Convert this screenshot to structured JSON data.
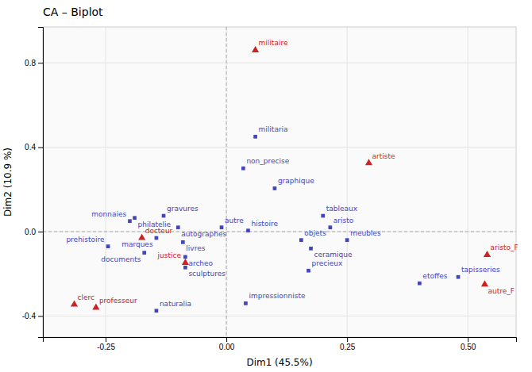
{
  "chart_data": {
    "type": "scatter",
    "title": "CA – Biplot",
    "xlabel": "Dim1 (45.5%)",
    "ylabel": "Dim2 (10.9 %)",
    "xlim": [
      -0.38,
      0.6
    ],
    "ylim": [
      -0.5,
      0.97
    ],
    "xticks": [
      {
        "value": -0.25,
        "label": "-0.25"
      },
      {
        "value": 0.0,
        "label": "0.00"
      },
      {
        "value": 0.25,
        "label": "0.25"
      },
      {
        "value": 0.5,
        "label": "0.50"
      }
    ],
    "yticks": [
      {
        "value": -0.4,
        "label": "-0.4"
      },
      {
        "value": 0.0,
        "label": "0.0"
      },
      {
        "value": 0.4,
        "label": "0.4"
      },
      {
        "value": 0.8,
        "label": "0.8"
      }
    ],
    "grid": true,
    "series": [
      {
        "color": "#4444bb",
        "marker": "square",
        "labels": [
          "militaria",
          "non_precise",
          "graphique",
          "tableaux",
          "histoire",
          "autre",
          "autographes",
          "gravures",
          "philatelie",
          "monnaies",
          "marques",
          "livres",
          "documents",
          "archeo",
          "sculptures",
          "prehistoire",
          "naturalia",
          "impressionniste",
          "precieux",
          "ceramique",
          "objets",
          "meubles",
          "tapisseries",
          "etoffes",
          "aristo"
        ],
        "x": [
          0.06,
          0.035,
          0.1,
          0.2,
          0.045,
          -0.01,
          -0.1,
          -0.13,
          -0.19,
          -0.2,
          -0.145,
          -0.09,
          -0.17,
          -0.085,
          -0.085,
          -0.245,
          -0.145,
          0.04,
          0.17,
          0.175,
          0.155,
          0.25,
          0.48,
          0.4,
          0.215
        ],
        "values": [
          0.45,
          0.3,
          0.205,
          0.075,
          0.005,
          0.02,
          0.02,
          0.075,
          0.065,
          0.05,
          -0.03,
          -0.05,
          -0.1,
          -0.12,
          -0.17,
          -0.07,
          -0.375,
          -0.34,
          -0.185,
          -0.08,
          -0.04,
          -0.04,
          -0.215,
          -0.245,
          0.02
        ]
      },
      {
        "color": "#cc2222",
        "marker": "triangle",
        "labels": [
          "militaire",
          "artiste",
          "aristo_F",
          "autre_F",
          "docteur",
          "justice",
          "clerc",
          "professeur"
        ],
        "x": [
          0.06,
          0.295,
          0.54,
          0.535,
          -0.175,
          -0.085,
          -0.315,
          -0.27
        ],
        "values": [
          0.86,
          0.325,
          -0.11,
          -0.25,
          -0.03,
          -0.148,
          -0.345,
          -0.36
        ]
      }
    ]
  }
}
